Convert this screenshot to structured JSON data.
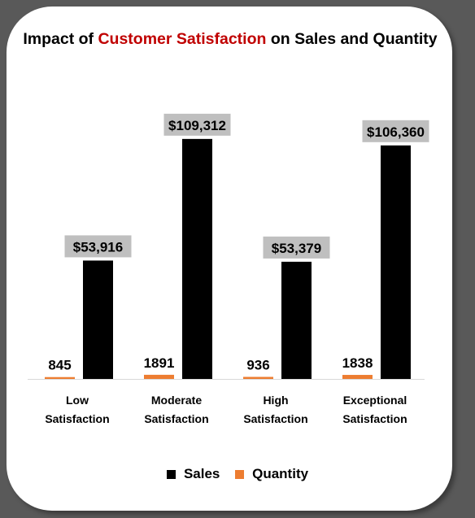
{
  "title": {
    "prefix": "Impact of ",
    "highlight": "Customer Satisfaction",
    "suffix": " on Sales and Quantity"
  },
  "colors": {
    "background": "#595959",
    "highlight": "#c00000",
    "sales": "#000000",
    "quantity": "#ed7d31",
    "sales_label_bg": "#bfbfbf"
  },
  "chart_data": {
    "type": "bar",
    "categories": [
      [
        "Low",
        "Satisfaction"
      ],
      [
        "Moderate",
        "Satisfaction"
      ],
      [
        "High",
        "Satisfaction"
      ],
      [
        "Exceptional",
        "Satisfaction"
      ]
    ],
    "series": [
      {
        "name": "Sales",
        "values": [
          53916,
          109312,
          53379,
          106360
        ],
        "labels": [
          "$53,916",
          "$109,312",
          "$53,379",
          "$106,360"
        ]
      },
      {
        "name": "Quantity",
        "values": [
          845,
          1891,
          936,
          1838
        ],
        "labels": [
          "845",
          "1891",
          "936",
          "1838"
        ]
      }
    ],
    "legend": "bottom",
    "grid": false
  }
}
